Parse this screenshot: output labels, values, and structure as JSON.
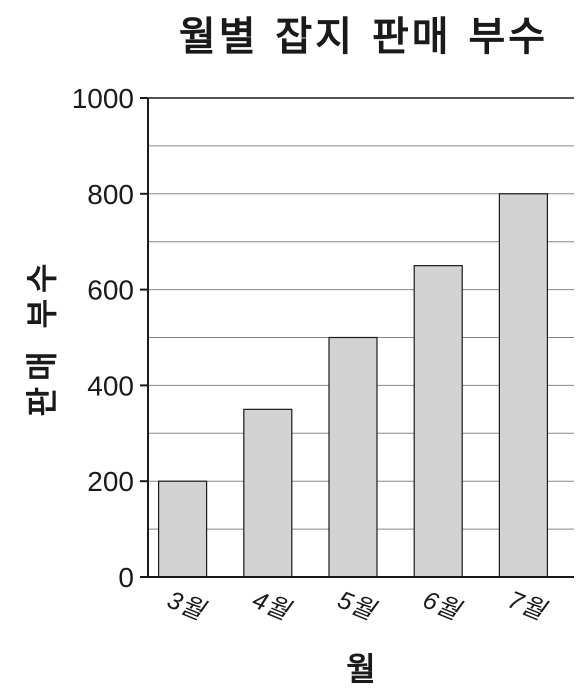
{
  "chart_data": {
    "type": "bar",
    "title": "월별 잡지 판매 부수",
    "xlabel": "월",
    "ylabel": "판매 부수",
    "categories": [
      "3월",
      "4월",
      "5월",
      "6월",
      "7월"
    ],
    "values": [
      200,
      350,
      500,
      650,
      800
    ],
    "ylim": [
      0,
      1000
    ],
    "yticks": [
      0,
      200,
      400,
      600,
      800,
      1000
    ],
    "grid": true,
    "colors": {
      "bar_fill": "#d3d3d3",
      "bar_stroke": "#1a1a1a",
      "grid": "#888888"
    }
  }
}
